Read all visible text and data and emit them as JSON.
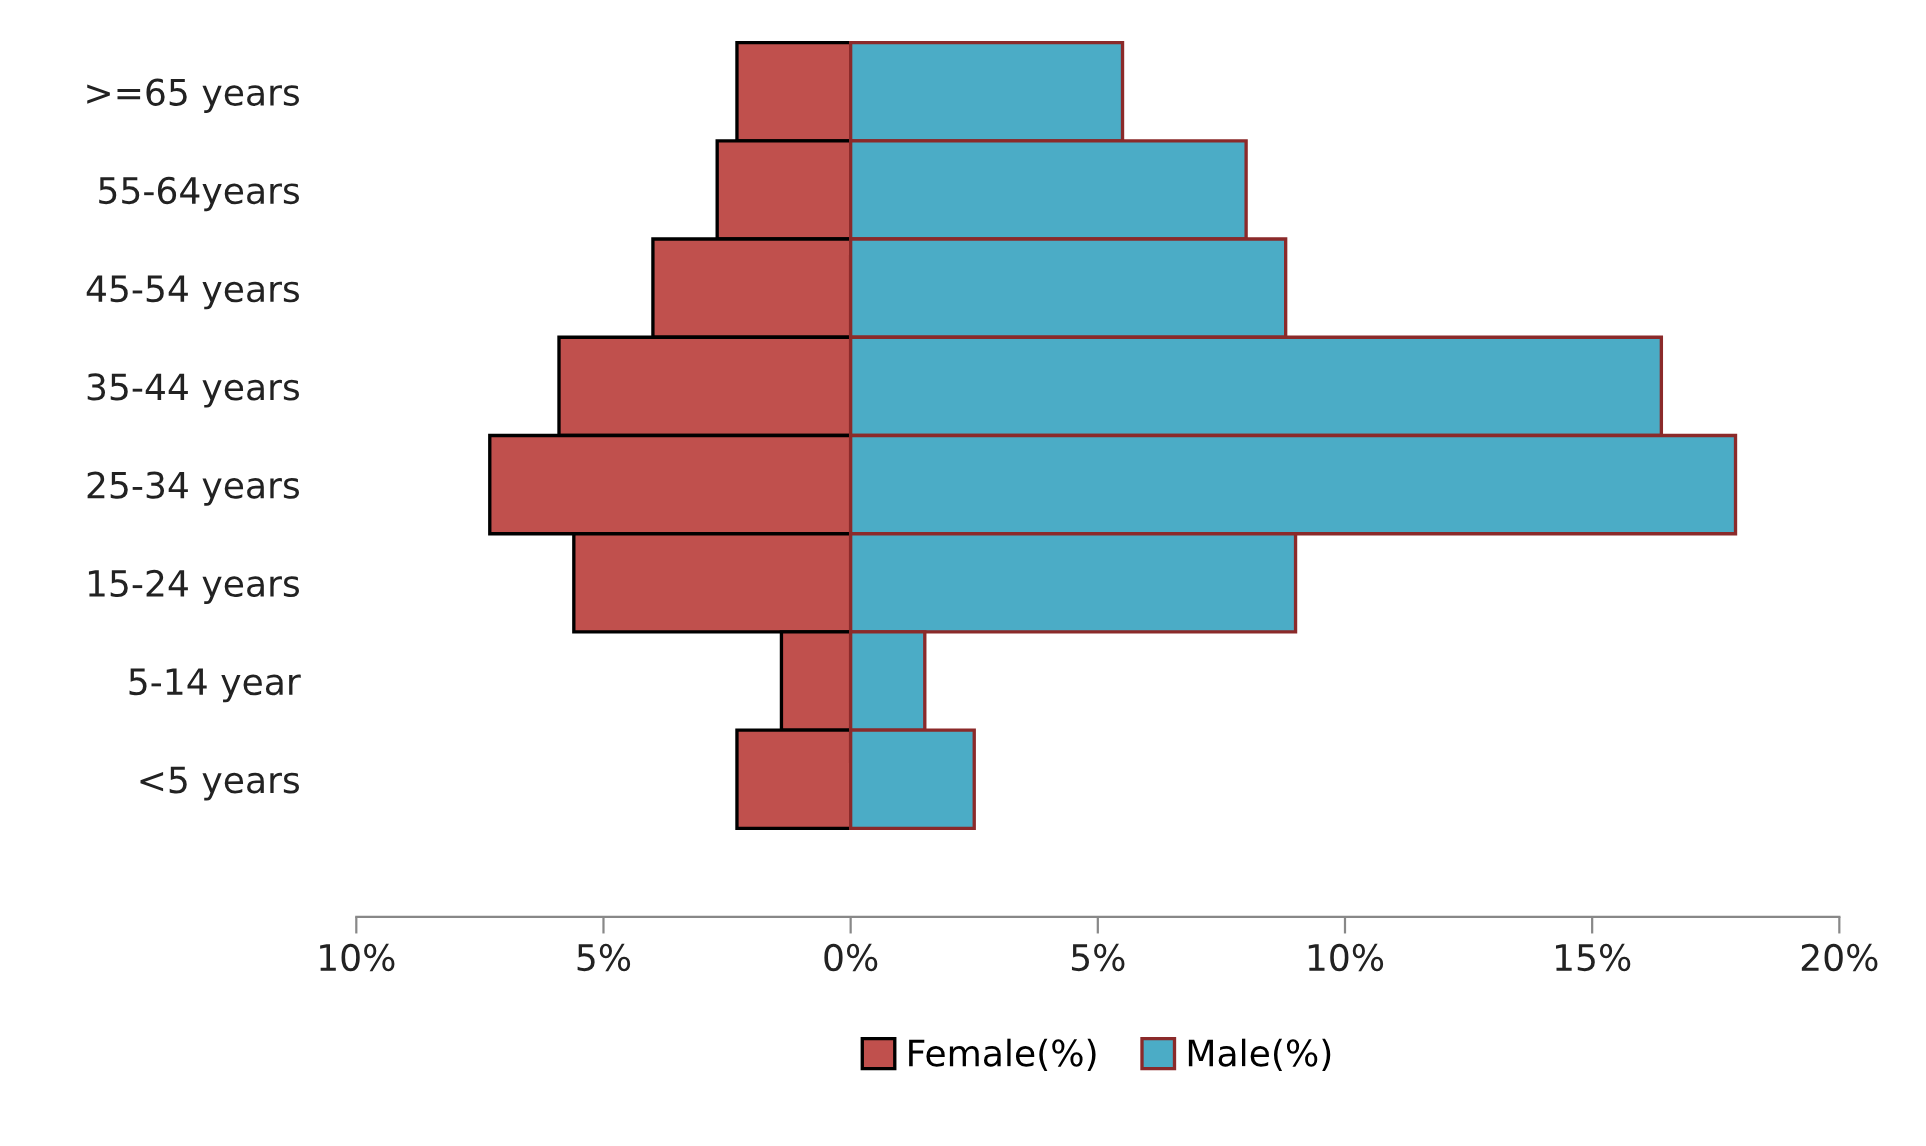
{
  "chart_data": {
    "type": "bar",
    "orientation": "horizontal",
    "categories": [
      ">=65 years",
      "55-64years",
      "45-54 years",
      "35-44 years",
      "25-34 years",
      "15-24 years",
      "5-14 year",
      "<5 years"
    ],
    "series": [
      {
        "name": "Female(%)",
        "color": "#c0504d",
        "values": [
          -2.3,
          -2.7,
          -4.0,
          -5.9,
          -7.3,
          -5.6,
          -1.4,
          -2.3
        ]
      },
      {
        "name": "Male(%)",
        "color": "#4bacc6",
        "values": [
          5.5,
          8.0,
          8.8,
          16.4,
          17.9,
          9.0,
          1.5,
          2.5
        ]
      }
    ],
    "xlim": [
      -10,
      20
    ],
    "xticks": [
      {
        "value": -10,
        "label": "10%"
      },
      {
        "value": -5,
        "label": "5%"
      },
      {
        "value": 0,
        "label": "0%"
      },
      {
        "value": 5,
        "label": "5%"
      },
      {
        "value": 10,
        "label": "10%"
      },
      {
        "value": 15,
        "label": "15%"
      },
      {
        "value": 20,
        "label": "20%"
      }
    ],
    "stacked": true,
    "legend": "bottom"
  }
}
